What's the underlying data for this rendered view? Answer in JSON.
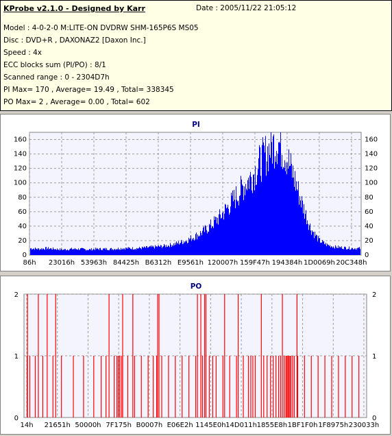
{
  "header": {
    "app_title": "KProbe v2.1.0 - Designed by Karr",
    "date": "Date : 2005/11/22 21:05:12",
    "lines": [
      "Model : 4-0-2-0 M:LITE-ON DVDRW SHM-165P6S MS05",
      "Disc : DVD+R , DAXONAZ2 [Daxon Inc.]",
      "Speed : 4x",
      "ECC blocks sum (PI/PO) : 8/1",
      "Scanned range : 0 - 2304D7h",
      "PI Max= 170 , Average= 19.49 , Total= 338345",
      "PO Max= 2 , Average= 0.00 , Total= 602"
    ]
  },
  "colors": {
    "pi": "#0000ff",
    "po": "#ff0000",
    "grid": "#9b9b9b",
    "plot_bg": "#f4f4ff"
  },
  "chart_data": [
    {
      "type": "area",
      "title": "PI",
      "ylim": [
        0,
        170
      ],
      "y_ticks": [
        0,
        20,
        40,
        60,
        80,
        100,
        120,
        140,
        160
      ],
      "x_tick_labels": [
        "86h",
        "23016h",
        "53963h",
        "84425h",
        "B6312h",
        "E9561h",
        "120007h",
        "159F47h",
        "194384h",
        "1D0069h",
        "20C348h"
      ],
      "series": [
        {
          "values": [
            10,
            9,
            10,
            9,
            8,
            9,
            9,
            8,
            9,
            9,
            9,
            10,
            10,
            10,
            11,
            12,
            13,
            15,
            18,
            22,
            28,
            35,
            45,
            57,
            72,
            88,
            105,
            120,
            140,
            158,
            170,
            150,
            115,
            75,
            40,
            22,
            15,
            12,
            11,
            10,
            10
          ]
        }
      ]
    },
    {
      "type": "bar",
      "title": "PO",
      "ylim": [
        0,
        2
      ],
      "y_ticks": [
        0,
        1,
        2
      ],
      "x_tick_labels": [
        "14h",
        "21651h",
        "50000h",
        "7F175h",
        "B0007h",
        "E06E2h",
        "1145E0h",
        "14D011h",
        "1855E8h",
        "1BF1F0h",
        "1F8975h",
        "230033h"
      ],
      "series": [
        {
          "ones": [
            0.004,
            0.012,
            0.028,
            0.05,
            0.08,
            0.105,
            0.14,
            0.17,
            0.2,
            0.222,
            0.236,
            0.26,
            0.268,
            0.272,
            0.276,
            0.281,
            0.285,
            0.3,
            0.32,
            0.34,
            0.36,
            0.375,
            0.385,
            0.4,
            0.42,
            0.44,
            0.46,
            0.48,
            0.5,
            0.52,
            0.54,
            0.55,
            0.56,
            0.58,
            0.6,
            0.62,
            0.64,
            0.655,
            0.662,
            0.668,
            0.675,
            0.7,
            0.71,
            0.72,
            0.728,
            0.736,
            0.744,
            0.75,
            0.76,
            0.765,
            0.768,
            0.771,
            0.774,
            0.777,
            0.78,
            0.785,
            0.79,
            0.8,
            0.82,
            0.84,
            0.86,
            0.88,
            0.9,
            0.92,
            0.94,
            0.96,
            0.98
          ],
          "twos": [
            0.005,
            0.037,
            0.063,
            0.088,
            0.245,
            0.285,
            0.315,
            0.388,
            0.392,
            0.505,
            0.515,
            0.526,
            0.53,
            0.585,
            0.625,
            0.693,
            0.755,
            0.798
          ]
        }
      ]
    }
  ]
}
